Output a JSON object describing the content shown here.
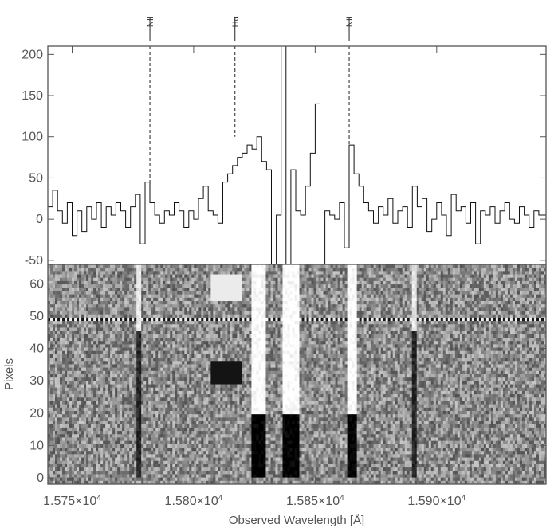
{
  "chart_data": [
    {
      "type": "line",
      "xlim": [
        15740,
        15945
      ],
      "ylim": [
        -55,
        210
      ],
      "yticks": [
        -50,
        0,
        50,
        100,
        150,
        200
      ],
      "ytick_labels": [
        "-50",
        "0",
        "50",
        "100",
        "150",
        "200"
      ],
      "line_markers": [
        {
          "name": "NII",
          "x": 15782,
          "y_top_dash": 40
        },
        {
          "name": "Hα",
          "x": 15817,
          "y_top_dash": 100
        },
        {
          "name": "NII",
          "x": 15864,
          "y_top_dash": 90
        }
      ],
      "series": [
        {
          "style": "histogram-step",
          "x": [
            15740,
            15742,
            15744,
            15746,
            15748,
            15750,
            15752,
            15754,
            15756,
            15758,
            15760,
            15762,
            15764,
            15766,
            15768,
            15770,
            15772,
            15774,
            15776,
            15778,
            15780,
            15782,
            15784,
            15786,
            15788,
            15790,
            15792,
            15794,
            15796,
            15798,
            15800,
            15802,
            15804,
            15806,
            15808,
            15810,
            15812,
            15814,
            15816,
            15818,
            15820,
            15822,
            15824,
            15826,
            15828,
            15830,
            15832,
            15834,
            15836,
            15838,
            15840,
            15842,
            15844,
            15846,
            15848,
            15850,
            15852,
            15854,
            15856,
            15858,
            15860,
            15862,
            15864,
            15866,
            15868,
            15870,
            15872,
            15874,
            15876,
            15878,
            15880,
            15882,
            15884,
            15886,
            15888,
            15890,
            15892,
            15894,
            15896,
            15898,
            15900,
            15902,
            15904,
            15906,
            15908,
            15910,
            15912,
            15914,
            15916,
            15918,
            15920,
            15922,
            15924,
            15926,
            15928,
            15930,
            15932,
            15934,
            15936,
            15938,
            15940,
            15942
          ],
          "values": [
            15,
            35,
            10,
            -5,
            20,
            -20,
            10,
            -15,
            15,
            0,
            20,
            -10,
            15,
            5,
            20,
            10,
            -10,
            15,
            30,
            -30,
            45,
            20,
            5,
            -5,
            10,
            5,
            20,
            10,
            -10,
            10,
            0,
            25,
            40,
            10,
            5,
            -5,
            45,
            55,
            65,
            75,
            80,
            90,
            85,
            100,
            70,
            60,
            -55,
            5,
            260,
            -60,
            60,
            10,
            5,
            40,
            80,
            140,
            -60,
            10,
            5,
            0,
            20,
            -35,
            90,
            55,
            40,
            20,
            10,
            -5,
            15,
            5,
            25,
            -5,
            10,
            15,
            -10,
            40,
            15,
            25,
            -15,
            0,
            20,
            5,
            -20,
            30,
            10,
            15,
            -5,
            20,
            -30,
            10,
            5,
            15,
            -5,
            10,
            20,
            0,
            -5,
            15,
            5,
            -10,
            10,
            5
          ]
        }
      ],
      "ylabel": "",
      "xlabel": ""
    },
    {
      "type": "heatmap",
      "xlim": [
        15740,
        15945
      ],
      "ylim": [
        -2,
        66
      ],
      "yticks": [
        0,
        10,
        20,
        30,
        40,
        50,
        60
      ],
      "ytick_labels": [
        "0",
        "10",
        "20",
        "30",
        "40",
        "50",
        "60"
      ],
      "xticks": [
        15750,
        15800,
        15850,
        15900
      ],
      "xtick_labels": [
        {
          "mantissa": "1.575",
          "exponent": "4"
        },
        {
          "mantissa": "1.580",
          "exponent": "4"
        },
        {
          "mantissa": "1.585",
          "exponent": "4"
        },
        {
          "mantissa": "1.590",
          "exponent": "4"
        }
      ],
      "times_base": "×10",
      "ylabel": "Pixels",
      "xlabel": "Observed Wavelength [Å]"
    }
  ],
  "colors": {
    "axis": "#555555",
    "line": "#111111",
    "background": "#ffffff"
  }
}
